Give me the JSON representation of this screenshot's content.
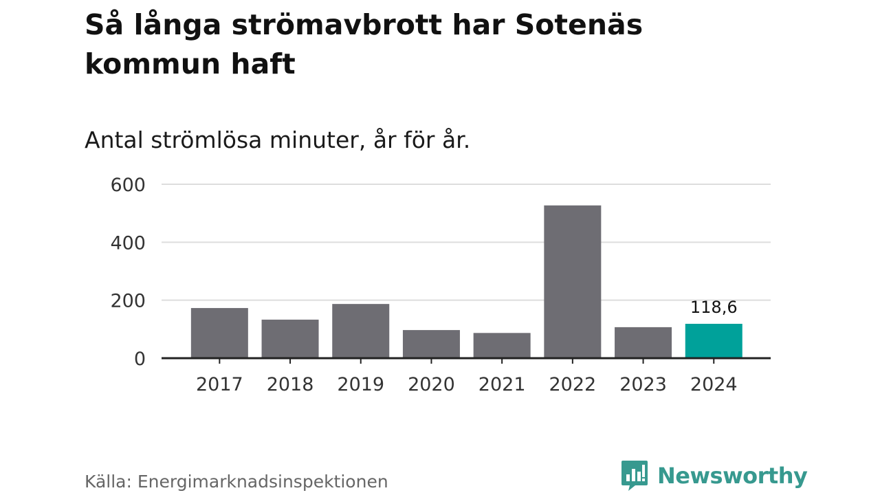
{
  "title": "Så långa strömavbrott har Sotenäs kommun haft",
  "subtitle": "Antal strömlösa minuter, år för år.",
  "source": "Källa: Energimarknadsinspektionen",
  "brand": {
    "name": "Newsworthy",
    "icon": "newsworthy-logo-icon",
    "color": "#37998f"
  },
  "colors": {
    "bar": "#6e6d73",
    "highlight": "#00a19a",
    "grid": "#dddddd",
    "axis": "#222222"
  },
  "chart_data": {
    "type": "bar",
    "categories": [
      "2017",
      "2018",
      "2019",
      "2020",
      "2021",
      "2022",
      "2023",
      "2024"
    ],
    "values": [
      173,
      133,
      187,
      97,
      87,
      527,
      107,
      118.6
    ],
    "highlight_index": 7,
    "data_labels": [
      null,
      null,
      null,
      null,
      null,
      null,
      null,
      "118,6"
    ],
    "ylim": [
      0,
      600
    ],
    "yticks": [
      0,
      200,
      400,
      600
    ],
    "grid": true,
    "xlabel": "",
    "ylabel": ""
  }
}
